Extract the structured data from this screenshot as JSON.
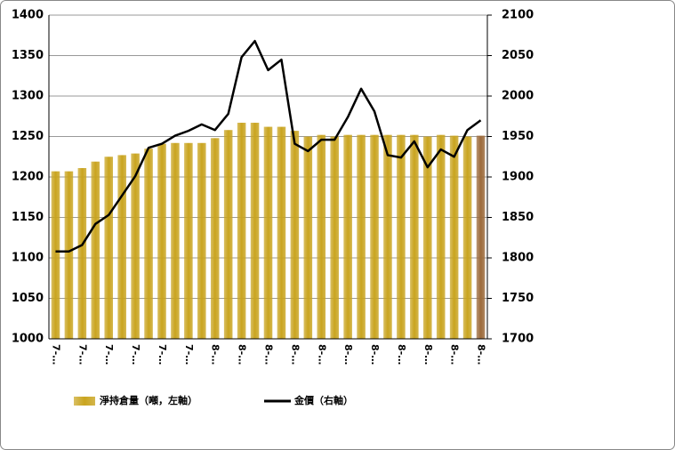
{
  "chart_data": {
    "type": "bar_line",
    "categories": [
      "7-…",
      null,
      "7-…",
      null,
      "7-…",
      null,
      "7-…",
      null,
      "7-…",
      null,
      "7-…",
      null,
      "8-…",
      null,
      "8-…",
      null,
      "8-…",
      null,
      "8-…",
      null,
      "8-…",
      null,
      "8-…",
      null,
      "8-…",
      null,
      "8-…",
      null,
      "8-…",
      null,
      "8-…",
      null,
      "8-…"
    ],
    "series": [
      {
        "name": "淨持倉量（噸，左軸）",
        "type": "bar",
        "color": "#c9a41f",
        "colors": [
          "#c9a41f",
          "#c9a41f",
          "#c9a41f",
          "#c9a41f",
          "#c9a41f",
          "#c9a41f",
          "#c9a41f",
          "#c9a41f",
          "#c9a41f",
          "#c9a41f",
          "#c9a41f",
          "#c9a41f",
          "#c9a41f",
          "#c9a41f",
          "#c9a41f",
          "#c9a41f",
          "#c9a41f",
          "#c9a41f",
          "#c9a41f",
          "#c9a41f",
          "#c9a41f",
          "#c9a41f",
          "#c9a41f",
          "#c9a41f",
          "#c9a41f",
          "#c9a41f",
          "#c9a41f",
          "#c9a41f",
          "#c9a41f",
          "#c9a41f",
          "#c9a41f",
          "#c9a41f",
          "#9c6a3a"
        ],
        "values": [
          1207,
          1207,
          1211,
          1219,
          1225,
          1227,
          1229,
          1235,
          1241,
          1242,
          1242,
          1242,
          1248,
          1258,
          1267,
          1267,
          1262,
          1262,
          1257,
          1250,
          1252,
          1250,
          1252,
          1252,
          1252,
          1252,
          1252,
          1252,
          1250,
          1252,
          1251,
          1250,
          1251
        ]
      },
      {
        "name": "金價（右軸）",
        "type": "line",
        "color": "#000000",
        "axis": "y2",
        "values": [
          1808,
          1808,
          1816,
          1842,
          1853,
          1877,
          1901,
          1936,
          1941,
          1951,
          1957,
          1965,
          1958,
          1978,
          2048,
          2068,
          2032,
          2045,
          1941,
          1932,
          1946,
          1946,
          1974,
          2009,
          1981,
          1927,
          1924,
          1944,
          1912,
          1934,
          1925,
          1958,
          1970
        ]
      }
    ],
    "ylim": [
      1000,
      1400
    ],
    "yticks": [
      1000,
      1050,
      1100,
      1150,
      1200,
      1250,
      1300,
      1350,
      1400
    ],
    "y2lim": [
      1700,
      2100
    ],
    "y2ticks": [
      1700,
      1750,
      1800,
      1850,
      1900,
      1950,
      2000,
      2050,
      2100
    ],
    "grid": true
  }
}
